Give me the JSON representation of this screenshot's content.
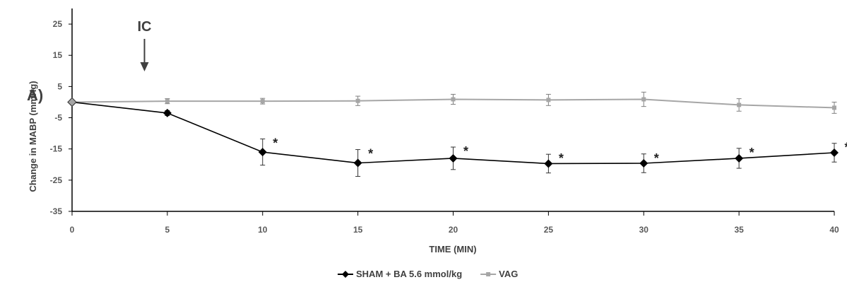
{
  "chart_data": {
    "type": "line",
    "panel_label": "A)",
    "xlabel": "TIME (MIN)",
    "ylabel": "Change in MABP (mmHg)",
    "xlim": [
      0,
      40
    ],
    "ylim": [
      -35,
      30
    ],
    "x_ticks": [
      0,
      5,
      10,
      15,
      20,
      25,
      30,
      35,
      40
    ],
    "y_ticks": [
      25,
      15,
      5,
      -5,
      -15,
      -25,
      -35
    ],
    "grid": false,
    "legend_position": "bottom-center",
    "annotation": {
      "text": "IC",
      "x": 3.8
    },
    "origin_point": {
      "x": 0,
      "y": 0
    },
    "series": [
      {
        "name": "SHAM + BA 5.6 mmol/kg",
        "color": "#000000",
        "marker": "diamond",
        "x": [
          5,
          10,
          15,
          20,
          25,
          30,
          35,
          40
        ],
        "y": [
          -3.5,
          -16,
          -19.5,
          -18,
          -19.7,
          -19.6,
          -18,
          -16.2
        ],
        "err": [
          0.8,
          4.2,
          4.3,
          3.6,
          3.0,
          3.0,
          3.2,
          3.0
        ],
        "significant": [
          false,
          true,
          true,
          true,
          true,
          true,
          true,
          true
        ],
        "sig_symbol": "*"
      },
      {
        "name": "VAG",
        "color": "#a6a6a6",
        "marker": "square",
        "x": [
          5,
          10,
          15,
          20,
          25,
          30,
          35,
          40
        ],
        "y": [
          0.3,
          0.3,
          0.4,
          0.9,
          0.7,
          0.9,
          -0.9,
          -1.8
        ],
        "err": [
          0.8,
          0.9,
          1.5,
          1.6,
          1.8,
          2.3,
          2.0,
          1.8
        ],
        "significant": [
          false,
          false,
          false,
          false,
          false,
          false,
          false,
          false
        ],
        "sig_symbol": ""
      }
    ]
  }
}
